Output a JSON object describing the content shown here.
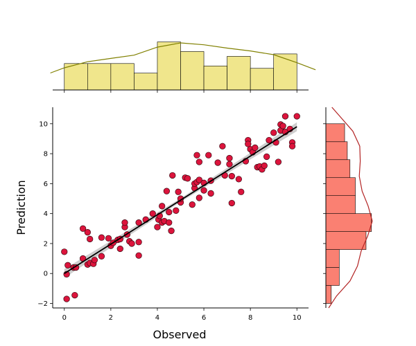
{
  "chart_data": {
    "type": "scatter",
    "subtype": "joint-plot",
    "xlabel": "Observed",
    "ylabel": "Prediction",
    "xlim": [
      -0.5,
      10.5
    ],
    "ylim": [
      -2.3,
      11.1
    ],
    "x_ticks": [
      0,
      2,
      4,
      6,
      8,
      10
    ],
    "y_ticks": [
      -2,
      0,
      2,
      4,
      6,
      8,
      10
    ],
    "x_tick_labels": [
      "0",
      "2",
      "4",
      "6",
      "8",
      "10"
    ],
    "y_tick_labels": [
      "−2",
      "0",
      "2",
      "4",
      "6",
      "8",
      "10"
    ],
    "grid": false,
    "colors": {
      "points": "#dc143c",
      "point_edge": "#3a0a12",
      "regression_line": "#000000",
      "confidence_band": "#bdbdbd",
      "top_hist_fill": "#f0e68c",
      "top_kde": "#808000",
      "right_hist_fill": "#fa8072",
      "right_kde": "#b22222"
    },
    "regression": {
      "intercept": 0.0,
      "slope": 0.98,
      "x_range": [
        0,
        10
      ]
    },
    "points": [
      [
        0.0,
        1.45
      ],
      [
        0.1,
        -1.7
      ],
      [
        0.1,
        -0.05
      ],
      [
        0.15,
        0.55
      ],
      [
        0.4,
        0.4
      ],
      [
        0.45,
        -1.45
      ],
      [
        0.5,
        0.4
      ],
      [
        0.8,
        1.0
      ],
      [
        0.8,
        3.0
      ],
      [
        1.0,
        2.75
      ],
      [
        1.0,
        0.6
      ],
      [
        1.1,
        2.3
      ],
      [
        1.1,
        0.7
      ],
      [
        1.25,
        0.65
      ],
      [
        1.3,
        0.9
      ],
      [
        1.6,
        2.4
      ],
      [
        1.6,
        1.15
      ],
      [
        1.9,
        2.35
      ],
      [
        2.0,
        1.85
      ],
      [
        2.1,
        2.05
      ],
      [
        2.3,
        2.25
      ],
      [
        2.4,
        1.65
      ],
      [
        2.4,
        2.3
      ],
      [
        2.6,
        3.1
      ],
      [
        2.6,
        3.4
      ],
      [
        2.7,
        2.6
      ],
      [
        2.8,
        2.15
      ],
      [
        2.9,
        2.0
      ],
      [
        3.2,
        1.2
      ],
      [
        3.2,
        2.1
      ],
      [
        3.2,
        3.4
      ],
      [
        3.5,
        3.6
      ],
      [
        3.8,
        4.0
      ],
      [
        4.0,
        3.1
      ],
      [
        4.05,
        3.6
      ],
      [
        4.1,
        3.85
      ],
      [
        4.2,
        3.4
      ],
      [
        4.2,
        4.5
      ],
      [
        4.3,
        3.5
      ],
      [
        4.4,
        5.5
      ],
      [
        4.5,
        4.1
      ],
      [
        4.5,
        3.4
      ],
      [
        4.6,
        2.85
      ],
      [
        4.65,
        6.55
      ],
      [
        4.8,
        4.2
      ],
      [
        4.9,
        5.45
      ],
      [
        5.0,
        4.75
      ],
      [
        5.0,
        5.0
      ],
      [
        5.2,
        6.4
      ],
      [
        5.3,
        6.35
      ],
      [
        5.5,
        4.6
      ],
      [
        5.6,
        5.7
      ],
      [
        5.6,
        6.0
      ],
      [
        5.7,
        6.1
      ],
      [
        5.7,
        7.9
      ],
      [
        5.8,
        6.25
      ],
      [
        5.8,
        7.45
      ],
      [
        5.8,
        5.05
      ],
      [
        6.0,
        6.05
      ],
      [
        6.0,
        5.55
      ],
      [
        6.2,
        7.9
      ],
      [
        6.3,
        5.35
      ],
      [
        6.3,
        6.2
      ],
      [
        6.6,
        7.4
      ],
      [
        6.8,
        8.5
      ],
      [
        6.9,
        6.55
      ],
      [
        7.1,
        7.3
      ],
      [
        7.1,
        7.7
      ],
      [
        7.2,
        6.5
      ],
      [
        7.2,
        4.7
      ],
      [
        7.5,
        6.3
      ],
      [
        7.6,
        5.45
      ],
      [
        7.8,
        7.5
      ],
      [
        7.9,
        8.9
      ],
      [
        7.9,
        8.65
      ],
      [
        8.0,
        8.3
      ],
      [
        8.1,
        8.1
      ],
      [
        8.2,
        8.4
      ],
      [
        8.3,
        7.1
      ],
      [
        8.4,
        7.15
      ],
      [
        8.5,
        6.95
      ],
      [
        8.6,
        7.2
      ],
      [
        8.7,
        7.8
      ],
      [
        8.8,
        8.9
      ],
      [
        9.0,
        9.4
      ],
      [
        9.1,
        8.75
      ],
      [
        9.2,
        7.45
      ],
      [
        9.3,
        9.55
      ],
      [
        9.3,
        9.95
      ],
      [
        9.4,
        9.85
      ],
      [
        9.5,
        9.45
      ],
      [
        9.5,
        10.5
      ],
      [
        9.7,
        9.65
      ],
      [
        9.8,
        8.75
      ],
      [
        9.8,
        8.5
      ],
      [
        10.0,
        10.5
      ]
    ],
    "top_histogram": {
      "bins": [
        0.0,
        1.0,
        2.0,
        3.0,
        4.0,
        5.0,
        6.0,
        7.0,
        8.0,
        9.0,
        10.0
      ],
      "counts": [
        11,
        11,
        11,
        7,
        20,
        16,
        10,
        14,
        9,
        15
      ]
    },
    "right_histogram": {
      "bins": [
        -2.0,
        -0.8,
        0.4,
        1.6,
        2.8,
        4.0,
        5.2,
        6.4,
        7.6,
        8.8,
        10.0
      ],
      "counts": [
        2,
        5,
        5,
        15,
        17,
        11,
        11,
        9,
        8,
        7
      ]
    },
    "top_kde": {
      "x": [
        -0.6,
        0.0,
        1.0,
        2.0,
        3.0,
        4.0,
        5.0,
        6.0,
        7.0,
        8.0,
        9.0,
        10.0,
        10.8
      ],
      "density": [
        0.36,
        0.47,
        0.6,
        0.67,
        0.74,
        0.91,
        1.0,
        0.96,
        0.89,
        0.83,
        0.75,
        0.58,
        0.43
      ]
    },
    "right_kde": {
      "y": [
        -2.3,
        -1.5,
        -0.5,
        0.5,
        1.5,
        2.5,
        3.5,
        4.5,
        5.5,
        6.5,
        7.5,
        8.5,
        9.5,
        10.5,
        11.1
      ],
      "density": [
        0.06,
        0.23,
        0.52,
        0.68,
        0.76,
        0.9,
        1.0,
        0.91,
        0.78,
        0.72,
        0.74,
        0.73,
        0.58,
        0.3,
        0.13
      ]
    }
  }
}
